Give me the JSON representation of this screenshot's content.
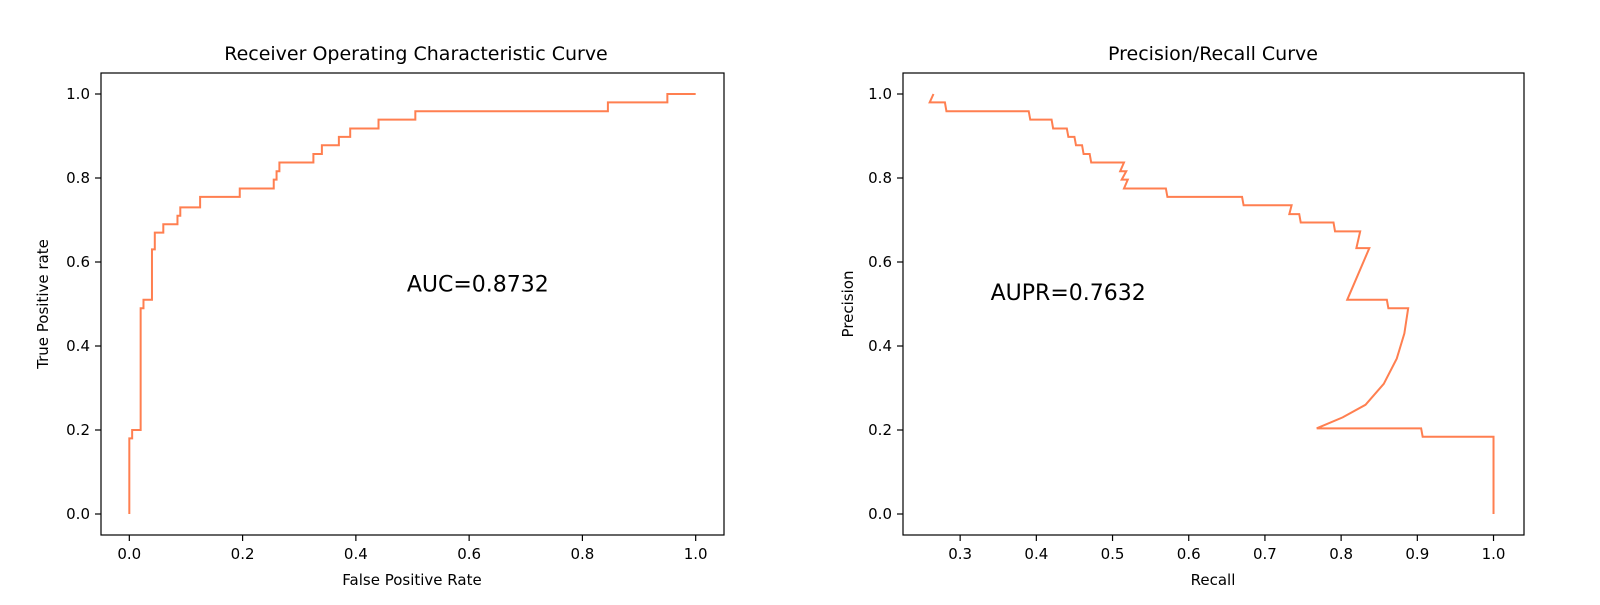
{
  "style": {
    "curve_color": "#ff7f50"
  },
  "chart_data": [
    {
      "type": "line",
      "title": "Receiver Operating Characteristic Curve",
      "xlabel": "False Positive Rate",
      "ylabel": "True Positive rate",
      "xlim": [
        -0.05,
        1.05
      ],
      "ylim": [
        -0.05,
        1.05
      ],
      "xticks": [
        0.0,
        0.2,
        0.4,
        0.6,
        0.8,
        1.0
      ],
      "xtick_labels": [
        "0.0",
        "0.2",
        "0.4",
        "0.6",
        "0.8",
        "1.0"
      ],
      "yticks": [
        0.0,
        0.2,
        0.4,
        0.6,
        0.8,
        1.0
      ],
      "ytick_labels": [
        "0.0",
        "0.2",
        "0.4",
        "0.6",
        "0.8",
        "1.0"
      ],
      "grid": false,
      "annotation": {
        "text": "AUC=0.8732",
        "x": 0.49,
        "y": 0.53
      },
      "series": [
        {
          "x": [
            0.0,
            0.0,
            0.005,
            0.005,
            0.02,
            0.02,
            0.025,
            0.025,
            0.04,
            0.04,
            0.045,
            0.045,
            0.06,
            0.06,
            0.085,
            0.085,
            0.09,
            0.09,
            0.125,
            0.125,
            0.195,
            0.195,
            0.255,
            0.255,
            0.26,
            0.26,
            0.265,
            0.265,
            0.325,
            0.325,
            0.34,
            0.34,
            0.37,
            0.37,
            0.39,
            0.39,
            0.44,
            0.44,
            0.505,
            0.505,
            0.845,
            0.845,
            0.95,
            0.95,
            1.0
          ],
          "y": [
            0.0,
            0.18,
            0.18,
            0.2,
            0.2,
            0.49,
            0.49,
            0.51,
            0.51,
            0.63,
            0.63,
            0.67,
            0.67,
            0.69,
            0.69,
            0.71,
            0.71,
            0.73,
            0.73,
            0.755,
            0.755,
            0.775,
            0.775,
            0.796,
            0.796,
            0.816,
            0.816,
            0.837,
            0.837,
            0.857,
            0.857,
            0.878,
            0.878,
            0.898,
            0.898,
            0.918,
            0.918,
            0.939,
            0.939,
            0.959,
            0.959,
            0.98,
            0.98,
            1.0,
            1.0
          ]
        }
      ]
    },
    {
      "type": "line",
      "title": "Precision/Recall Curve",
      "xlabel": "Recall",
      "ylabel": "Precision",
      "xlim": [
        0.225,
        1.04
      ],
      "ylim": [
        -0.05,
        1.05
      ],
      "xticks": [
        0.3,
        0.4,
        0.5,
        0.6,
        0.7,
        0.8,
        0.9,
        1.0
      ],
      "xtick_labels": [
        "0.3",
        "0.4",
        "0.5",
        "0.6",
        "0.7",
        "0.8",
        "0.9",
        "1.0"
      ],
      "yticks": [
        0.0,
        0.2,
        0.4,
        0.6,
        0.8,
        1.0
      ],
      "ytick_labels": [
        "0.0",
        "0.2",
        "0.4",
        "0.6",
        "0.8",
        "1.0"
      ],
      "grid": false,
      "annotation": {
        "text": "AUPR=0.7632",
        "x": 0.34,
        "y": 0.51
      },
      "series": [
        {
          "x": [
            0.265,
            0.26,
            0.28,
            0.282,
            0.39,
            0.392,
            0.42,
            0.422,
            0.44,
            0.442,
            0.45,
            0.452,
            0.46,
            0.462,
            0.47,
            0.472,
            0.515,
            0.51,
            0.518,
            0.512,
            0.52,
            0.515,
            0.57,
            0.572,
            0.67,
            0.672,
            0.735,
            0.732,
            0.745,
            0.747,
            0.79,
            0.792,
            0.825,
            0.82,
            0.837,
            0.808,
            0.86,
            0.862,
            0.888,
            0.883,
            0.873,
            0.856,
            0.832,
            0.802,
            0.768,
            0.905,
            0.907,
            1.0,
            1.0
          ],
          "y": [
            1.0,
            0.98,
            0.98,
            0.959,
            0.959,
            0.939,
            0.939,
            0.918,
            0.918,
            0.898,
            0.898,
            0.878,
            0.878,
            0.857,
            0.857,
            0.837,
            0.837,
            0.816,
            0.816,
            0.796,
            0.796,
            0.775,
            0.775,
            0.755,
            0.755,
            0.735,
            0.735,
            0.714,
            0.714,
            0.694,
            0.694,
            0.673,
            0.673,
            0.633,
            0.633,
            0.51,
            0.51,
            0.49,
            0.49,
            0.43,
            0.37,
            0.31,
            0.26,
            0.23,
            0.204,
            0.204,
            0.184,
            0.184,
            0.0
          ]
        }
      ]
    }
  ]
}
